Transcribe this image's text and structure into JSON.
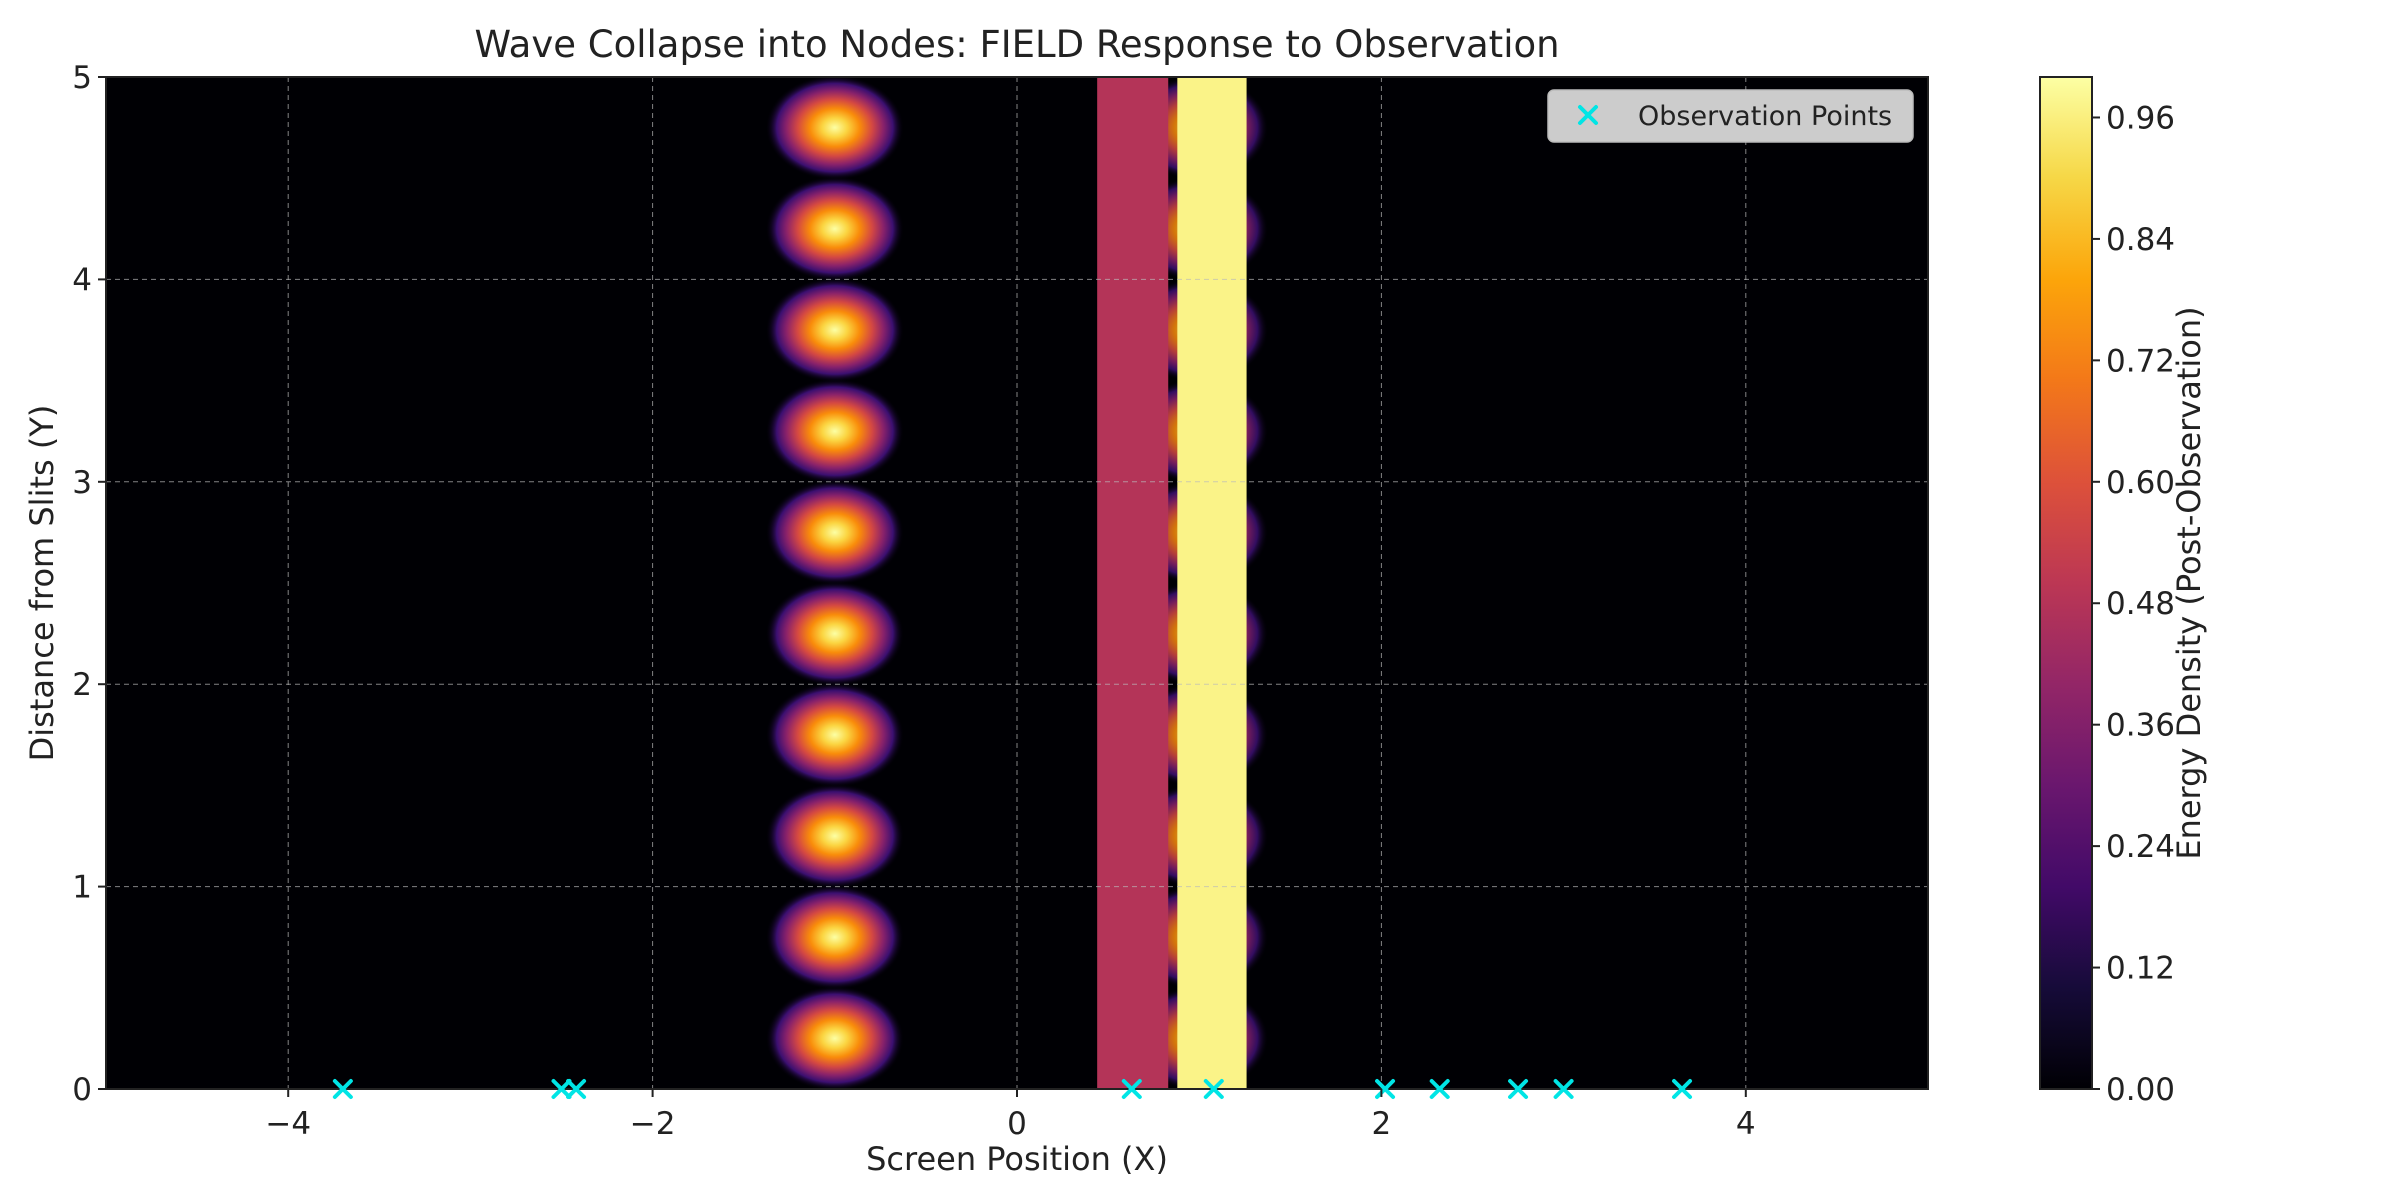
{
  "chart_data": {
    "type": "heatmap",
    "title": "Wave Collapse into Nodes: FIELD Response to Observation",
    "xlabel": "Screen Position (X)",
    "ylabel": "Distance from Slits (Y)",
    "xlim": [
      -5,
      5
    ],
    "ylim": [
      0,
      5
    ],
    "x_ticks": [
      -4,
      -2,
      0,
      2,
      4
    ],
    "x_tick_labels": [
      "−4",
      "−2",
      "0",
      "2",
      "4"
    ],
    "y_ticks": [
      0,
      1,
      2,
      3,
      4,
      5
    ],
    "y_tick_labels": [
      "0",
      "1",
      "2",
      "3",
      "4",
      "5"
    ],
    "grid": true,
    "colormap": "inferno",
    "colorbar": {
      "label": "Energy Density (Post-Observation)",
      "range": [
        0,
        1
      ],
      "ticks": [
        0.0,
        0.12,
        0.24,
        0.36,
        0.48,
        0.6,
        0.72,
        0.84,
        0.96
      ],
      "tick_labels": [
        "0.00",
        "0.12",
        "0.24",
        "0.36",
        "0.48",
        "0.60",
        "0.72",
        "0.84",
        "0.96"
      ]
    },
    "nodes": {
      "x": -1.0,
      "y": [
        0.25,
        0.75,
        1.25,
        1.75,
        2.25,
        2.75,
        3.25,
        3.75,
        4.25,
        4.75
      ],
      "value": 1.0
    },
    "faint_nodes": {
      "x": 1.0,
      "y": [
        0.25,
        0.75,
        1.25,
        1.75,
        2.25,
        2.75,
        3.25,
        3.75,
        4.25,
        4.75
      ],
      "value": 0.85
    },
    "bands": [
      {
        "x0": 0.44,
        "x1": 0.83,
        "value": 0.48
      },
      {
        "x0": 0.88,
        "x1": 1.26,
        "value": 0.97
      }
    ],
    "series": [
      {
        "name": "Observation Points",
        "type": "scatter",
        "marker": "x",
        "color": "#00e5e5",
        "points": [
          [
            -3.7,
            0.0
          ],
          [
            -2.5,
            0.0
          ],
          [
            -2.42,
            0.0
          ],
          [
            0.63,
            0.0
          ],
          [
            1.08,
            0.0
          ],
          [
            2.02,
            0.0
          ],
          [
            2.32,
            0.0
          ],
          [
            2.75,
            0.0
          ],
          [
            3.0,
            0.0
          ],
          [
            3.65,
            0.0
          ]
        ]
      }
    ],
    "legend": {
      "position": "top-right",
      "entries": [
        "Observation Points"
      ]
    }
  }
}
